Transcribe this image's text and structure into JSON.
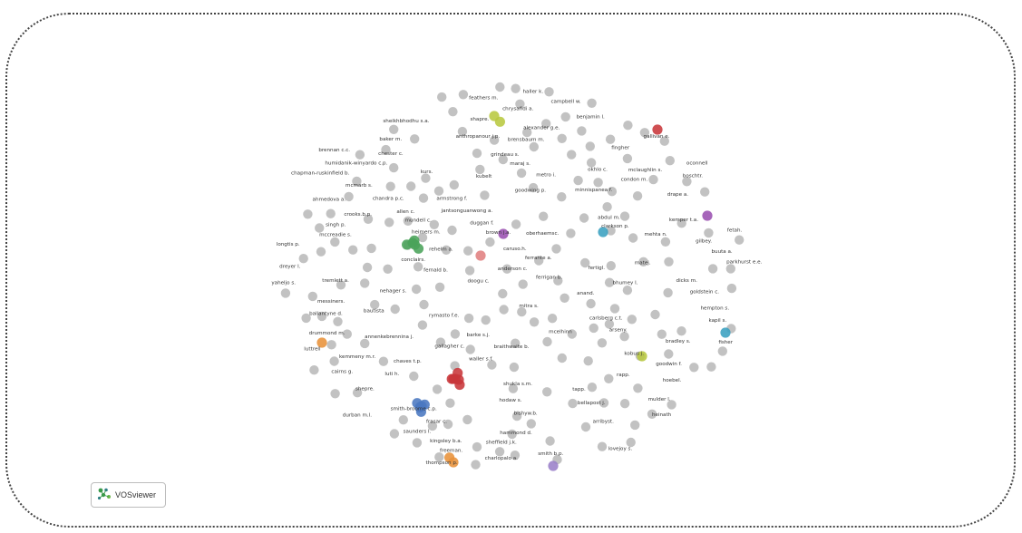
{
  "brand": {
    "name": "VOSviewer",
    "icon": "vosviewer-logo-icon",
    "color": "#3a9a4a"
  },
  "colors": {
    "default_node": "#b9b9b9",
    "green": "#4aa35a",
    "red": "#c8373a",
    "blue": "#4a78c0",
    "orange": "#e8923a",
    "lime": "#b8c840",
    "purple": "#9a50b0",
    "teal": "#3aa0c0",
    "pink": "#e08080",
    "lavender": "#9a80c8"
  },
  "authors": [
    "bhumey l.",
    "kobus j.",
    "oberhaemsc.",
    "goodwing p.",
    "bishyw.b.",
    "brown j.a.",
    "buuta a.",
    "drape a.",
    "abdul m.",
    "mehta n.",
    "nehager s.",
    "anderson c.",
    "hammond d.",
    "mcmarb s.",
    "longtis p.",
    "rehelm a.",
    "brensbaum m.",
    "caruso.h.",
    "tapp.",
    "arribyst.",
    "rymasto f.e.",
    "parkhurst e.e.",
    "rapp.",
    "mccreadie s.",
    "crooks.b.p.",
    "gilbey.",
    "smith-broome c.p.",
    "hodaw s.",
    "goldstein c.",
    "durban m.l.",
    "humidanik-winyardo c.p.",
    "arseny.",
    "shukla s.m.",
    "alexander g.e.",
    "haller k.",
    "sheikhbhodhu s.a.",
    "fingher",
    "minnispanea f.",
    "mulder l.",
    "chapman-ruskinfield b.",
    "mcelhinn",
    "bautista",
    "barke s.j.",
    "mclaughlin s.",
    "luti h.",
    "carlsberg c.t.",
    "anand.",
    "metro i.",
    "benjamin l.",
    "dreyer l.",
    "anthropanour j.p.",
    "fisher",
    "mitra s.",
    "matej.",
    "ballantyne d.",
    "luttrell",
    "saunders l.",
    "kubelt",
    "oconnell",
    "chrysafidi a.",
    "armstrong f.",
    "sheffield j.k.",
    "heimers m.",
    "kurs.",
    "shapre.",
    "boschtr.",
    "kemmeny m.r.",
    "doogu c.",
    "bellapost j.",
    "condon m.",
    "kapil s.",
    "grindeau s.",
    "duggan f.",
    "gallivan e.",
    "conclairs.",
    "goodwin f.",
    "ahmedova a.",
    "annenkebrennina j.",
    "shepre.",
    "waller s.f.",
    "clarkson p.",
    "okhlo c.",
    "baker m.",
    "thompson p.",
    "fertigl.",
    "fernald b.",
    "chester c.",
    "feathers m.",
    "freeman.",
    "bradley s.",
    "tremlett a.",
    "kemper t.a.",
    "brennan c.c.",
    "hoebel.",
    "hempton s.",
    "mundell c.",
    "lovejoy s.",
    "ferrante a.",
    "kingsley b.a.",
    "allen c.",
    "fetah.",
    "maraj s.",
    "singh p.",
    "messiners.",
    "dicks m.",
    "cairns g.",
    "chaves t.p.",
    "heinath",
    "drummond m.",
    "charlopalo a.",
    "jantsonguanwong a.",
    "chandra p.c.",
    "smith b.p.",
    "gallagher c.",
    "braithwaite b.",
    "yaheljo s.",
    "ferrigan b.",
    "campbell w.",
    "frasar c."
  ]
}
